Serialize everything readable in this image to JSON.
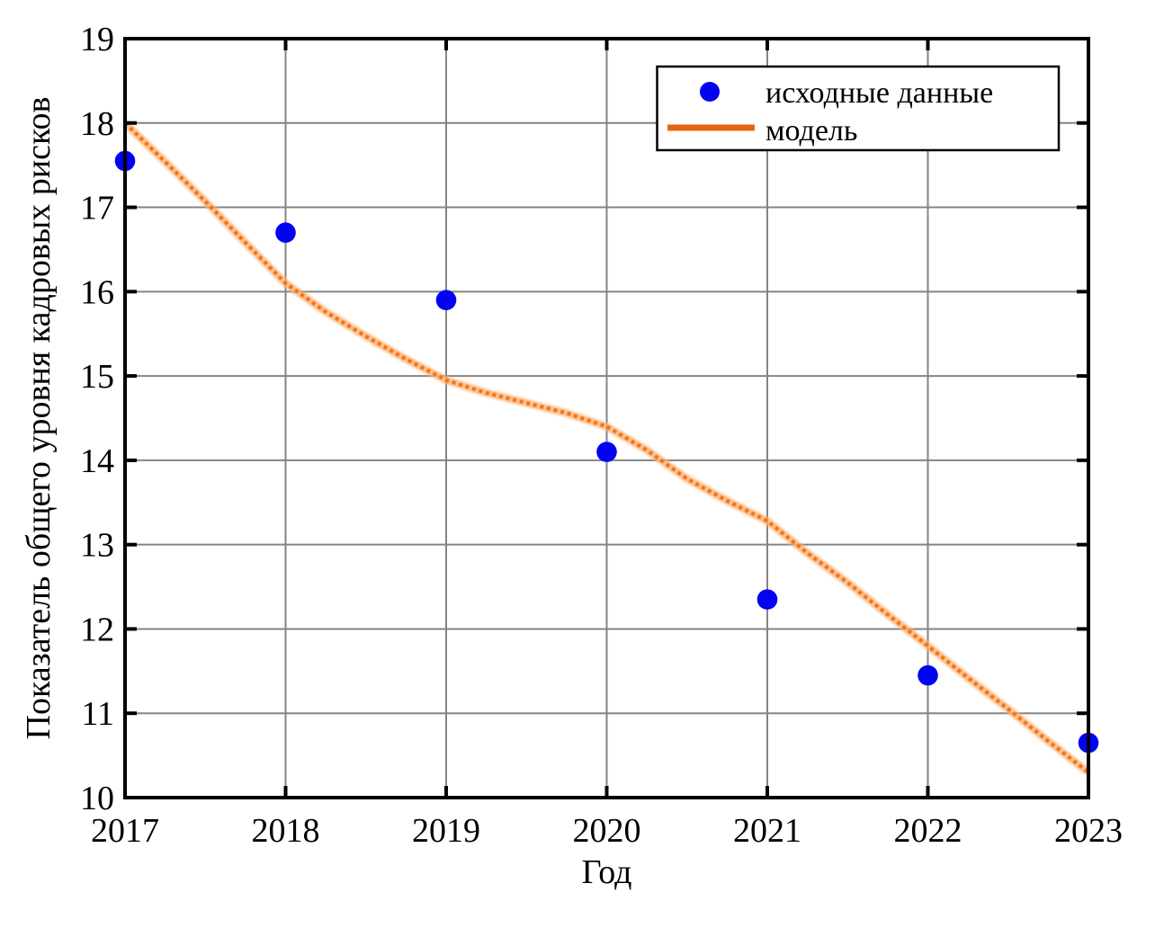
{
  "chart_data": {
    "type": "scatter",
    "title": "",
    "xlabel": "Год",
    "ylabel": "Показатель общего уровня кадровых рисков",
    "xlim": [
      2017,
      2023
    ],
    "ylim": [
      10,
      19
    ],
    "x_ticks": [
      2017,
      2018,
      2019,
      2020,
      2021,
      2022,
      2023
    ],
    "y_ticks": [
      10,
      11,
      12,
      13,
      14,
      15,
      16,
      17,
      18,
      19
    ],
    "grid": true,
    "legend": {
      "position": "upper right",
      "entries": [
        {
          "label": "исходные данные",
          "marker": "dot",
          "color": "#0303f2"
        },
        {
          "label": "модель",
          "marker": "line",
          "color": "#e8650f"
        }
      ]
    },
    "series": [
      {
        "name": "исходные данные",
        "type": "scatter",
        "color": "#0303f2",
        "x": [
          2017,
          2018,
          2019,
          2020,
          2021,
          2022,
          2023
        ],
        "y": [
          17.55,
          16.7,
          15.9,
          14.1,
          12.35,
          11.45,
          10.65
        ]
      },
      {
        "name": "модель",
        "type": "line",
        "color": "#ec6c0d",
        "halo_color": "#ffb172",
        "x": [
          2017,
          2017.25,
          2017.5,
          2017.75,
          2018,
          2018.25,
          2018.5,
          2018.75,
          2019,
          2019.25,
          2019.5,
          2019.75,
          2020,
          2020.25,
          2020.5,
          2020.75,
          2021,
          2021.25,
          2021.5,
          2021.75,
          2022,
          2022.25,
          2022.5,
          2022.75,
          2023
        ],
        "y": [
          18.0,
          17.54,
          17.07,
          16.58,
          16.1,
          15.76,
          15.47,
          15.2,
          14.95,
          14.8,
          14.68,
          14.56,
          14.4,
          14.12,
          13.78,
          13.52,
          13.28,
          12.9,
          12.55,
          12.17,
          11.8,
          11.42,
          11.05,
          10.67,
          10.3
        ]
      }
    ],
    "colors": {
      "grid": "#848484",
      "frame": "#000000",
      "background": "#ffffff"
    }
  }
}
